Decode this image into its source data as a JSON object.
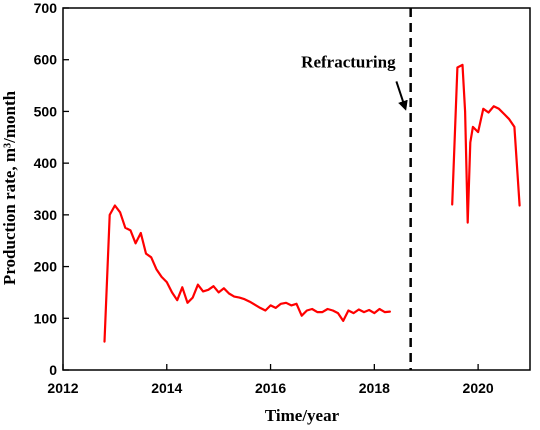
{
  "chart_data": {
    "type": "line",
    "xlabel": "Time/year",
    "ylabel": "Production rate, m³/month",
    "xlim": [
      2012,
      2021
    ],
    "ylim": [
      0,
      700
    ],
    "x_ticks": [
      "2012",
      "2014",
      "2016",
      "2018",
      "2020"
    ],
    "y_ticks": [
      "0",
      "100",
      "200",
      "300",
      "400",
      "500",
      "600",
      "700"
    ],
    "grid": false,
    "line_color": "#ff0000",
    "segments": [
      {
        "x": [
          2012.8,
          2012.9,
          2013.0,
          2013.1,
          2013.2,
          2013.3,
          2013.4,
          2013.5,
          2013.6,
          2013.7,
          2013.8,
          2013.9,
          2014.0,
          2014.1,
          2014.2,
          2014.3,
          2014.4,
          2014.5,
          2014.6,
          2014.7,
          2014.8,
          2014.9,
          2015.0,
          2015.1,
          2015.2,
          2015.3,
          2015.4,
          2015.5,
          2015.6,
          2015.7,
          2015.8,
          2015.9,
          2016.0,
          2016.1,
          2016.2,
          2016.3,
          2016.4,
          2016.5,
          2016.6,
          2016.7,
          2016.8,
          2016.9,
          2017.0,
          2017.1,
          2017.2,
          2017.3,
          2017.4,
          2017.5,
          2017.6,
          2017.7,
          2017.8,
          2017.9,
          2018.0,
          2018.1,
          2018.2,
          2018.3
        ],
        "y": [
          55,
          300,
          318,
          305,
          275,
          270,
          245,
          265,
          225,
          218,
          195,
          180,
          170,
          150,
          135,
          160,
          130,
          140,
          165,
          152,
          155,
          162,
          150,
          158,
          148,
          142,
          140,
          137,
          132,
          126,
          120,
          115,
          125,
          120,
          128,
          130,
          125,
          128,
          105,
          115,
          118,
          112,
          112,
          118,
          115,
          110,
          95,
          115,
          110,
          117,
          112,
          116,
          110,
          118,
          112,
          113
        ]
      },
      {
        "x": [
          2019.5,
          2019.6,
          2019.7,
          2019.75,
          2019.8,
          2019.85,
          2019.9,
          2020.0,
          2020.1,
          2020.2,
          2020.3,
          2020.4,
          2020.5,
          2020.6,
          2020.7,
          2020.8
        ],
        "y": [
          320,
          585,
          590,
          500,
          285,
          440,
          470,
          460,
          505,
          498,
          510,
          505,
          495,
          485,
          470,
          318
        ]
      }
    ],
    "vline": {
      "x": 2018.7,
      "style": "dashed"
    },
    "annotations": [
      {
        "text": "Refracturing",
        "x": 2017.5,
        "y": 585,
        "arrow_to": [
          2018.6,
          505
        ]
      }
    ]
  }
}
